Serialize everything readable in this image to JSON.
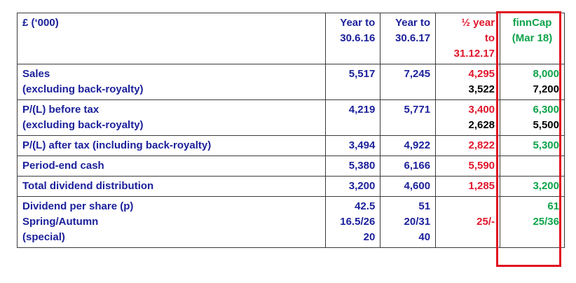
{
  "header": {
    "currency": "£ (‘000)",
    "col_year16": [
      "Year to",
      "30.6.16"
    ],
    "col_year17": [
      "Year to",
      "30.6.17"
    ],
    "col_half": [
      "½ year",
      "to",
      "31.12.17"
    ],
    "col_finncap": [
      "finnCap",
      "(Mar 18)"
    ]
  },
  "rows": {
    "sales": {
      "label": [
        "Sales",
        "(excluding back-royalty)"
      ],
      "y16": "5,517",
      "y17": "7,245",
      "half": [
        "4,295",
        "3,522"
      ],
      "fc": [
        "8,000",
        "7,200"
      ]
    },
    "pl_before": {
      "label": [
        "P/(L) before tax",
        "(excluding back-royalty)"
      ],
      "y16": "4,219",
      "y17": "5,771",
      "half": [
        "3,400",
        "2,628"
      ],
      "fc": [
        "6,300",
        "5,500"
      ]
    },
    "pl_after": {
      "label": "P/(L) after tax (including back-royalty)",
      "y16": "3,494",
      "y17": "4,922",
      "half": "2,822",
      "fc": "5,300"
    },
    "cash": {
      "label": "Period-end cash",
      "y16": "5,380",
      "y17": "6,166",
      "half": "5,590",
      "fc": ""
    },
    "dividend": {
      "label": "Total dividend distribution",
      "y16": "3,200",
      "y17": "4,600",
      "half": "1,285",
      "fc": "3,200"
    },
    "dps": {
      "label": [
        "Dividend per share (p)",
        "Spring/Autumn",
        "(special)"
      ],
      "y16": [
        "42.5",
        "16.5/26",
        "20"
      ],
      "y17": [
        "51",
        "20/31",
        "40"
      ],
      "half": [
        "",
        "25/-",
        ""
      ],
      "fc": [
        "61",
        "25/36",
        ""
      ]
    }
  },
  "colors": {
    "text_blue": "#1a1f9a",
    "half_year_red": "#e0162b",
    "finncap_green": "#0ea34a",
    "highlight_box": "#e0111f"
  }
}
